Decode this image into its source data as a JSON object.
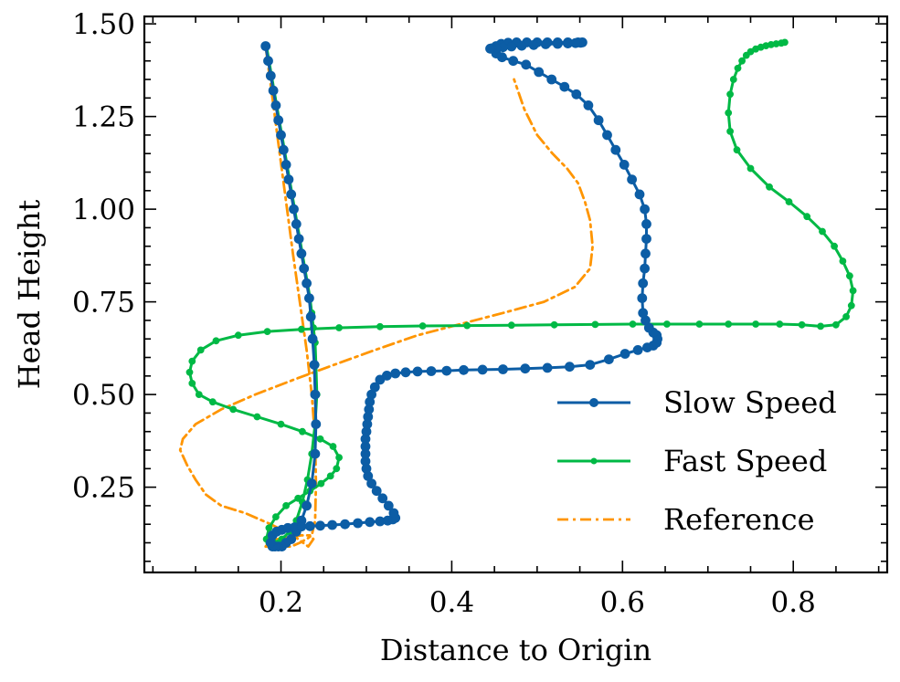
{
  "chart_data": {
    "type": "line",
    "title": "",
    "xlabel": "Distance to Origin",
    "ylabel": "Head Height",
    "xlim": [
      0.04,
      0.91
    ],
    "ylim": [
      0.02,
      1.52
    ],
    "xticks": [
      {
        "value": 0.2,
        "label": "0.2"
      },
      {
        "value": 0.4,
        "label": "0.4"
      },
      {
        "value": 0.6,
        "label": "0.6"
      },
      {
        "value": 0.8,
        "label": "0.8"
      }
    ],
    "yticks": [
      {
        "value": 0.25,
        "label": "0.25"
      },
      {
        "value": 0.5,
        "label": "0.50"
      },
      {
        "value": 0.75,
        "label": "0.75"
      },
      {
        "value": 1.0,
        "label": "1.00"
      },
      {
        "value": 1.25,
        "label": "1.25"
      },
      {
        "value": 1.5,
        "label": "1.50"
      }
    ],
    "grid": false,
    "legend_position": "lower-right",
    "series": [
      {
        "name": "Slow Speed",
        "color": "#0C5DA5",
        "marker": "circle",
        "x": [
          0.182,
          0.185,
          0.188,
          0.191,
          0.194,
          0.197,
          0.2,
          0.203,
          0.206,
          0.209,
          0.212,
          0.215,
          0.218,
          0.221,
          0.224,
          0.227,
          0.23,
          0.233,
          0.235,
          0.237,
          0.239,
          0.24,
          0.241,
          0.24,
          0.236,
          0.23,
          0.224,
          0.218,
          0.212,
          0.206,
          0.201,
          0.197,
          0.193,
          0.19,
          0.188,
          0.19,
          0.195,
          0.201,
          0.208,
          0.216,
          0.224,
          0.234,
          0.246,
          0.26,
          0.275,
          0.29,
          0.304,
          0.316,
          0.325,
          0.331,
          0.334,
          0.332,
          0.326,
          0.319,
          0.312,
          0.306,
          0.302,
          0.3,
          0.299,
          0.299,
          0.299,
          0.299,
          0.3,
          0.301,
          0.302,
          0.303,
          0.304,
          0.306,
          0.31,
          0.316,
          0.324,
          0.334,
          0.346,
          0.36,
          0.376,
          0.394,
          0.414,
          0.436,
          0.46,
          0.486,
          0.512,
          0.538,
          0.562,
          0.584,
          0.603,
          0.618,
          0.629,
          0.636,
          0.64,
          0.641,
          0.64,
          0.636,
          0.631,
          0.627,
          0.624,
          0.623,
          0.624,
          0.626,
          0.627,
          0.628,
          0.628,
          0.626,
          0.62,
          0.611,
          0.602,
          0.592,
          0.582,
          0.572,
          0.56,
          0.546,
          0.532,
          0.517,
          0.502,
          0.487,
          0.472,
          0.459,
          0.452,
          0.45,
          0.452,
          0.458,
          0.466,
          0.476,
          0.488,
          0.5,
          0.512,
          0.524,
          0.536,
          0.548,
          0.553,
          0.551,
          0.545,
          0.536,
          0.524,
          0.51,
          0.496,
          0.482,
          0.47,
          0.46,
          0.452,
          0.447,
          0.445
        ],
        "y": [
          1.44,
          1.4,
          1.36,
          1.32,
          1.28,
          1.24,
          1.2,
          1.16,
          1.12,
          1.08,
          1.04,
          1.0,
          0.96,
          0.92,
          0.88,
          0.84,
          0.8,
          0.76,
          0.71,
          0.65,
          0.58,
          0.5,
          0.42,
          0.34,
          0.26,
          0.2,
          0.16,
          0.13,
          0.11,
          0.1,
          0.09,
          0.09,
          0.09,
          0.09,
          0.1,
          0.12,
          0.13,
          0.135,
          0.14,
          0.142,
          0.144,
          0.145,
          0.146,
          0.148,
          0.15,
          0.153,
          0.156,
          0.158,
          0.16,
          0.163,
          0.167,
          0.18,
          0.2,
          0.22,
          0.24,
          0.26,
          0.28,
          0.3,
          0.32,
          0.34,
          0.36,
          0.38,
          0.4,
          0.42,
          0.44,
          0.46,
          0.48,
          0.5,
          0.52,
          0.54,
          0.551,
          0.557,
          0.56,
          0.562,
          0.563,
          0.564,
          0.566,
          0.567,
          0.568,
          0.57,
          0.572,
          0.575,
          0.58,
          0.595,
          0.61,
          0.62,
          0.627,
          0.632,
          0.64,
          0.65,
          0.66,
          0.667,
          0.68,
          0.7,
          0.72,
          0.76,
          0.8,
          0.84,
          0.88,
          0.92,
          0.96,
          1.0,
          1.04,
          1.08,
          1.12,
          1.16,
          1.2,
          1.24,
          1.28,
          1.31,
          1.33,
          1.35,
          1.37,
          1.39,
          1.4,
          1.41,
          1.42,
          1.43,
          1.44,
          1.446,
          1.449,
          1.45,
          1.45,
          1.45,
          1.45,
          1.45,
          1.45,
          1.45,
          1.45,
          1.449,
          1.448,
          1.447,
          1.446,
          1.445,
          1.443,
          1.441,
          1.439,
          1.437,
          1.435,
          1.434,
          1.433
        ],
        "markers_x": [
          0.182,
          0.185,
          0.188,
          0.191,
          0.194,
          0.197,
          0.2,
          0.203,
          0.206,
          0.209,
          0.212,
          0.215,
          0.218,
          0.221,
          0.224,
          0.227,
          0.23,
          0.233,
          0.235,
          0.237,
          0.239,
          0.24,
          0.241,
          0.24,
          0.236,
          0.23,
          0.224,
          0.218,
          0.212,
          0.206,
          0.201,
          0.197,
          0.193,
          0.19,
          0.188,
          0.19,
          0.195,
          0.201,
          0.208,
          0.216,
          0.224,
          0.234,
          0.246,
          0.26,
          0.275,
          0.29,
          0.304,
          0.316,
          0.325,
          0.331,
          0.334,
          0.332,
          0.326,
          0.319,
          0.312,
          0.306,
          0.302,
          0.3,
          0.299,
          0.299,
          0.299,
          0.299,
          0.3,
          0.301,
          0.302,
          0.303,
          0.304,
          0.306,
          0.31,
          0.316,
          0.324,
          0.334,
          0.346,
          0.36,
          0.376,
          0.394,
          0.414,
          0.436,
          0.46,
          0.486,
          0.512,
          0.538,
          0.562,
          0.584,
          0.603,
          0.618,
          0.629,
          0.636,
          0.64,
          0.641,
          0.64,
          0.636,
          0.631,
          0.627,
          0.624,
          0.623,
          0.624,
          0.626,
          0.627,
          0.628,
          0.628,
          0.626,
          0.62,
          0.611,
          0.602,
          0.592,
          0.582,
          0.572,
          0.56,
          0.546,
          0.532,
          0.517,
          0.502,
          0.487,
          0.472,
          0.459,
          0.452,
          0.45,
          0.452,
          0.458,
          0.466,
          0.476,
          0.488,
          0.5,
          0.512,
          0.524,
          0.536,
          0.548,
          0.553,
          0.551,
          0.545,
          0.536,
          0.524,
          0.51,
          0.496,
          0.482,
          0.47,
          0.46,
          0.452,
          0.447,
          0.445
        ]
      },
      {
        "name": "Fast Speed",
        "color": "#00B945",
        "marker": "circle",
        "x": [
          0.183,
          0.186,
          0.189,
          0.192,
          0.195,
          0.198,
          0.201,
          0.204,
          0.207,
          0.21,
          0.213,
          0.216,
          0.219,
          0.222,
          0.225,
          0.228,
          0.231,
          0.234,
          0.236,
          0.238,
          0.24,
          0.241,
          0.242,
          0.24,
          0.236,
          0.231,
          0.225,
          0.218,
          0.21,
          0.201,
          0.192,
          0.186,
          0.183,
          0.186,
          0.194,
          0.206,
          0.22,
          0.234,
          0.247,
          0.258,
          0.265,
          0.268,
          0.261,
          0.246,
          0.225,
          0.2,
          0.172,
          0.144,
          0.12,
          0.104,
          0.096,
          0.093,
          0.096,
          0.106,
          0.124,
          0.15,
          0.184,
          0.224,
          0.268,
          0.316,
          0.366,
          0.418,
          0.47,
          0.52,
          0.568,
          0.612,
          0.652,
          0.69,
          0.724,
          0.756,
          0.784,
          0.81,
          0.832,
          0.85,
          0.862,
          0.868,
          0.87,
          0.866,
          0.858,
          0.848,
          0.834,
          0.816,
          0.795,
          0.772,
          0.75,
          0.734,
          0.726,
          0.724,
          0.726,
          0.73,
          0.735,
          0.74,
          0.745,
          0.75,
          0.756,
          0.762,
          0.768,
          0.774,
          0.78,
          0.786,
          0.79
        ],
        "y": [
          1.44,
          1.4,
          1.36,
          1.32,
          1.28,
          1.24,
          1.2,
          1.16,
          1.12,
          1.08,
          1.04,
          1.0,
          0.96,
          0.92,
          0.88,
          0.84,
          0.8,
          0.76,
          0.72,
          0.68,
          0.64,
          0.58,
          0.5,
          0.42,
          0.34,
          0.27,
          0.21,
          0.16,
          0.13,
          0.11,
          0.1,
          0.1,
          0.11,
          0.14,
          0.17,
          0.2,
          0.22,
          0.24,
          0.26,
          0.28,
          0.3,
          0.33,
          0.36,
          0.38,
          0.4,
          0.42,
          0.44,
          0.46,
          0.48,
          0.5,
          0.53,
          0.56,
          0.59,
          0.62,
          0.645,
          0.66,
          0.67,
          0.676,
          0.68,
          0.683,
          0.685,
          0.686,
          0.687,
          0.688,
          0.689,
          0.69,
          0.69,
          0.69,
          0.69,
          0.69,
          0.69,
          0.688,
          0.684,
          0.688,
          0.71,
          0.74,
          0.78,
          0.82,
          0.86,
          0.9,
          0.94,
          0.98,
          1.02,
          1.06,
          1.11,
          1.16,
          1.21,
          1.26,
          1.31,
          1.35,
          1.38,
          1.4,
          1.415,
          1.425,
          1.432,
          1.437,
          1.441,
          1.444,
          1.446,
          1.448,
          1.45
        ],
        "markers_x": [
          0.183,
          0.186,
          0.189,
          0.192,
          0.195,
          0.198,
          0.201,
          0.204,
          0.207,
          0.21,
          0.213,
          0.216,
          0.219,
          0.222,
          0.225,
          0.228,
          0.231,
          0.234,
          0.236,
          0.238,
          0.24,
          0.241,
          0.242,
          0.24,
          0.236,
          0.231,
          0.225,
          0.218,
          0.21,
          0.201,
          0.192,
          0.186,
          0.183,
          0.186,
          0.194,
          0.206,
          0.22,
          0.234,
          0.247,
          0.258,
          0.265,
          0.268,
          0.261,
          0.246,
          0.225,
          0.2,
          0.172,
          0.144,
          0.12,
          0.104,
          0.096,
          0.093,
          0.096,
          0.106,
          0.124,
          0.15,
          0.184,
          0.224,
          0.268,
          0.316,
          0.366,
          0.418,
          0.47,
          0.52,
          0.568,
          0.612,
          0.652,
          0.69,
          0.724,
          0.756,
          0.784,
          0.81,
          0.832,
          0.85,
          0.862,
          0.868,
          0.87,
          0.866,
          0.858,
          0.848,
          0.834,
          0.816,
          0.795,
          0.772,
          0.75,
          0.734,
          0.726,
          0.724,
          0.726,
          0.73,
          0.735,
          0.74,
          0.745,
          0.75,
          0.756,
          0.762,
          0.768,
          0.774,
          0.78,
          0.786,
          0.79
        ]
      },
      {
        "name": "Reference",
        "color": "#FF9500",
        "marker": "none",
        "dash": "dashdot",
        "x": [
          0.182,
          0.19,
          0.198,
          0.206,
          0.214,
          0.222,
          0.23,
          0.236,
          0.24,
          0.241,
          0.24,
          0.236,
          0.23,
          0.222,
          0.212,
          0.2,
          0.188,
          0.182,
          0.186,
          0.196,
          0.21,
          0.224,
          0.234,
          0.238,
          0.232,
          0.214,
          0.188,
          0.158,
          0.13,
          0.112,
          0.1,
          0.09,
          0.082,
          0.085,
          0.1,
          0.13,
          0.17,
          0.215,
          0.262,
          0.31,
          0.36,
          0.41,
          0.46,
          0.508,
          0.544,
          0.562,
          0.565,
          0.562,
          0.556,
          0.548,
          0.535,
          0.518,
          0.5,
          0.485,
          0.473
        ],
        "y": [
          1.44,
          1.3,
          1.16,
          1.02,
          0.88,
          0.75,
          0.62,
          0.5,
          0.38,
          0.26,
          0.16,
          0.12,
          0.11,
          0.1,
          0.09,
          0.09,
          0.09,
          0.09,
          0.1,
          0.11,
          0.115,
          0.12,
          0.12,
          0.11,
          0.09,
          0.12,
          0.15,
          0.18,
          0.2,
          0.23,
          0.27,
          0.31,
          0.35,
          0.38,
          0.42,
          0.46,
          0.5,
          0.54,
          0.58,
          0.62,
          0.66,
          0.69,
          0.72,
          0.75,
          0.79,
          0.84,
          0.9,
          0.97,
          1.02,
          1.07,
          1.11,
          1.15,
          1.2,
          1.27,
          1.35
        ]
      }
    ]
  }
}
